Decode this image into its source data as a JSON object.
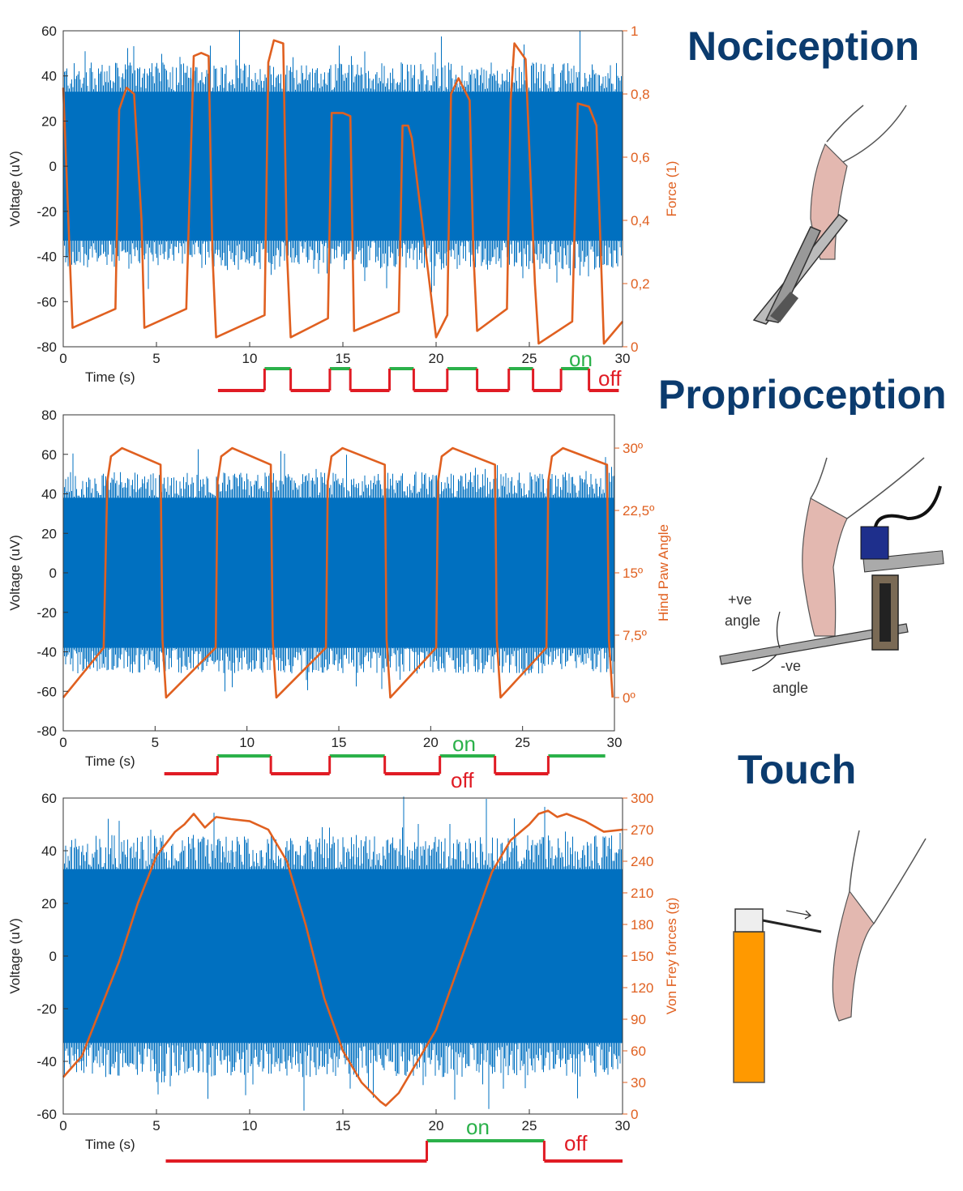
{
  "colors": {
    "signal": "#0070c0",
    "force": "#e06020",
    "right_axis_text": "#e06020",
    "on": "#2bb14a",
    "off": "#e01b24",
    "title": "#0b3b6e",
    "skin": "#e3b8b0",
    "pen": "#ff9900"
  },
  "panels": [
    {
      "title": "Nociception",
      "illustration": "hand-pinched-by-forceps-icon"
    },
    {
      "title": "Proprioception",
      "illustration": "paw-angle-rig-icon",
      "annotations": [
        "+ve",
        "angle",
        "-ve",
        "angle"
      ]
    },
    {
      "title": "Touch",
      "illustration": "von-frey-filament-icon"
    }
  ],
  "stim_labels": {
    "on": "on",
    "off": "off"
  },
  "chart_data": [
    {
      "type": "line",
      "xlabel": "Time (s)",
      "ylabel": "Voltage (uV)",
      "ylabel_right": "Force (1)",
      "xlim": [
        0,
        30
      ],
      "ylim": [
        -80,
        60
      ],
      "ylim_right": [
        0,
        1
      ],
      "x_ticks": [
        "0",
        "5",
        "10",
        "15",
        "20",
        "25",
        "30"
      ],
      "y_ticks": [
        "60",
        "40",
        "20",
        "0",
        "-20",
        "-40",
        "-60",
        "-80"
      ],
      "y_tick_values": [
        60,
        40,
        20,
        0,
        -20,
        -40,
        -60,
        -80
      ],
      "y2_ticks": [
        "1",
        "0,8",
        "0,6",
        "0,4",
        "0,2",
        "0"
      ],
      "y2_tick_values": [
        1,
        0.8,
        0.6,
        0.4,
        0.2,
        0
      ],
      "signal_band": [
        -33,
        33
      ],
      "series": [
        {
          "axis": "right",
          "x": [
            0,
            0.5,
            2.8,
            3.0,
            3.4,
            3.8,
            4.2,
            4.35,
            6.6,
            7.0,
            7.4,
            7.8,
            8.0,
            8.2,
            10.8,
            11.0,
            11.3,
            11.8,
            12.0,
            12.2,
            14.2,
            14.4,
            15.0,
            15.4,
            15.6,
            18.0,
            18.2,
            18.5,
            18.7,
            20.0,
            20.6,
            20.8,
            21.2,
            21.8,
            22.0,
            22.2,
            23.8,
            24.0,
            24.2,
            24.8,
            25.3,
            25.5,
            27.3,
            27.6,
            28.2,
            28.6,
            29.0,
            30.0
          ],
          "y": [
            0.82,
            0.06,
            0.12,
            0.75,
            0.82,
            0.8,
            0.4,
            0.06,
            0.12,
            0.92,
            0.93,
            0.92,
            0.3,
            0.03,
            0.1,
            0.9,
            0.97,
            0.96,
            0.3,
            0.03,
            0.09,
            0.74,
            0.74,
            0.73,
            0.05,
            0.11,
            0.7,
            0.7,
            0.66,
            0.03,
            0.1,
            0.8,
            0.85,
            0.78,
            0.3,
            0.05,
            0.12,
            0.78,
            0.96,
            0.91,
            0.2,
            0.01,
            0.08,
            0.77,
            0.76,
            0.7,
            0.01,
            0.08
          ]
        }
      ],
      "stimulus": {
        "x_start": 8.3,
        "x_end": 29.8,
        "on_intervals": [
          [
            10.8,
            12.2
          ],
          [
            14.3,
            15.4
          ],
          [
            17.5,
            18.8
          ],
          [
            20.6,
            22.2
          ],
          [
            23.9,
            25.2
          ],
          [
            26.7,
            28.2
          ]
        ]
      }
    },
    {
      "type": "line",
      "xlabel": "Time (s)",
      "ylabel": "Voltage (uV)",
      "ylabel_right": "Hind Paw Angle",
      "xlim": [
        0,
        30
      ],
      "ylim": [
        -80,
        80
      ],
      "ylim_right": [
        -4,
        34
      ],
      "x_ticks": [
        "0",
        "5",
        "10",
        "15",
        "20",
        "25",
        "30"
      ],
      "y_ticks": [
        "80",
        "60",
        "40",
        "20",
        "0",
        "-20",
        "-40",
        "-60",
        "-80"
      ],
      "y_tick_values": [
        80,
        60,
        40,
        20,
        0,
        -20,
        -40,
        -60,
        -80
      ],
      "y2_ticks": [
        "30º",
        "22,5º",
        "15º",
        "7,5º",
        "0º"
      ],
      "y2_tick_values": [
        30,
        22.5,
        15,
        7.5,
        0
      ],
      "signal_band": [
        -38,
        38
      ],
      "series": [
        {
          "axis": "right",
          "x": [
            0,
            2.2,
            2.4,
            2.6,
            3.2,
            5.3,
            5.4,
            5.6,
            8.3,
            8.4,
            8.6,
            9.2,
            11.3,
            11.4,
            11.6,
            14.3,
            14.4,
            14.6,
            15.2,
            17.5,
            17.6,
            17.8,
            20.3,
            20.4,
            20.6,
            21.2,
            23.5,
            23.6,
            23.8,
            26.3,
            26.4,
            26.6,
            27.2,
            29.6,
            29.7,
            29.9
          ],
          "y": [
            0,
            6,
            26,
            29,
            30,
            28,
            7,
            0,
            6,
            26,
            29,
            30,
            28,
            7,
            0,
            6,
            26,
            29,
            30,
            28,
            7,
            0,
            6,
            26,
            29,
            30,
            28,
            7,
            0,
            6,
            26,
            29,
            30,
            28,
            7,
            0
          ]
        }
      ],
      "stimulus": {
        "x_start": 5.5,
        "x_end": 29.5,
        "on_intervals": [
          [
            8.4,
            11.3
          ],
          [
            14.5,
            17.5
          ],
          [
            20.5,
            23.5
          ],
          [
            26.4,
            29.5
          ]
        ]
      }
    },
    {
      "type": "line",
      "xlabel": "Time (s)",
      "ylabel": "Voltage (uV)",
      "ylabel_right": "Von Frey forces (g)",
      "xlim": [
        0,
        30
      ],
      "ylim": [
        -60,
        60
      ],
      "ylim_right": [
        0,
        300
      ],
      "x_ticks": [
        "0",
        "5",
        "10",
        "15",
        "20",
        "25",
        "30"
      ],
      "y_ticks": [
        "60",
        "40",
        "20",
        "0",
        "-20",
        "-40",
        "-60"
      ],
      "y_tick_values": [
        60,
        40,
        20,
        0,
        -20,
        -40,
        -60
      ],
      "y2_ticks": [
        "300",
        "270",
        "240",
        "210",
        "180",
        "150",
        "120",
        "90",
        "60",
        "30",
        "0"
      ],
      "y2_tick_values": [
        300,
        270,
        240,
        210,
        180,
        150,
        120,
        90,
        60,
        30,
        0
      ],
      "signal_band": [
        -33,
        33
      ],
      "series": [
        {
          "axis": "right",
          "x": [
            0,
            1,
            2,
            3,
            4,
            5,
            6,
            6.5,
            7.0,
            7.6,
            8.2,
            9,
            10,
            11,
            12,
            13,
            14,
            15,
            16,
            17,
            17.3,
            18,
            19,
            20,
            21,
            22,
            23,
            24,
            25,
            25.5,
            26,
            26.5,
            27,
            28,
            29,
            30
          ],
          "y": [
            35,
            55,
            100,
            145,
            200,
            245,
            268,
            275,
            285,
            272,
            282,
            280,
            278,
            270,
            240,
            180,
            110,
            60,
            30,
            12,
            8,
            20,
            50,
            80,
            130,
            180,
            230,
            260,
            275,
            285,
            288,
            282,
            285,
            278,
            268,
            270
          ]
        }
      ],
      "stimulus": {
        "x_start": 5.5,
        "x_end": 30,
        "on_intervals": [
          [
            19.5,
            25.8
          ]
        ]
      }
    }
  ]
}
